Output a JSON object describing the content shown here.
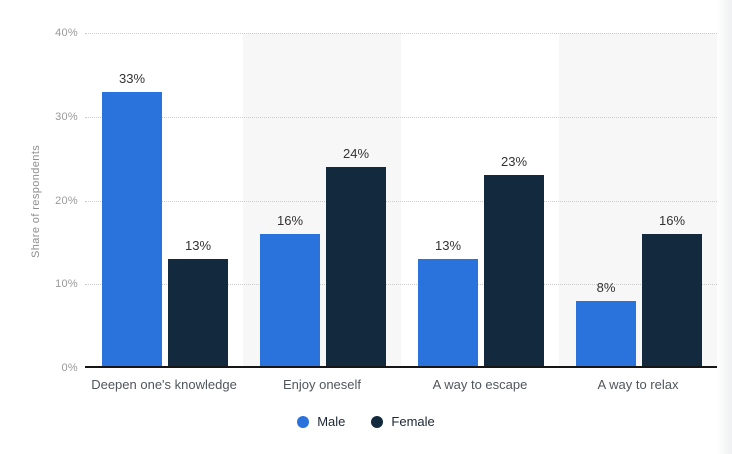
{
  "chart_data": {
    "type": "bar",
    "title": "",
    "xlabel": "",
    "ylabel": "Share of respondents",
    "categories": [
      "Deepen one's knowledge",
      "Enjoy oneself",
      "A way to escape",
      "A way to relax"
    ],
    "series": [
      {
        "name": "Male",
        "color": "#2b73dc",
        "values": [
          33,
          16,
          13,
          8
        ]
      },
      {
        "name": "Female",
        "color": "#13293e",
        "values": [
          13,
          24,
          23,
          16
        ]
      }
    ],
    "value_suffix": "%",
    "ylim": [
      0,
      40
    ],
    "yticks": [
      0,
      10,
      20,
      30,
      40
    ],
    "ytick_labels": [
      "0%",
      "10%",
      "20%",
      "30%",
      "40%"
    ],
    "grid": "horizontal-dotted",
    "band_shading": "alternating columns",
    "legend_position": "bottom"
  },
  "colors": {
    "male_bar": "#2b73dc",
    "female_bar": "#13293e",
    "band_alt": "#f7f7f7",
    "gridline": "#cccccc",
    "axis_baseline": "#161616",
    "tick_text": "#999999",
    "axis_title_text": "#8e8e8e",
    "category_text": "#51555c",
    "value_label_text": "#333333",
    "legend_text": "#1c2735"
  }
}
